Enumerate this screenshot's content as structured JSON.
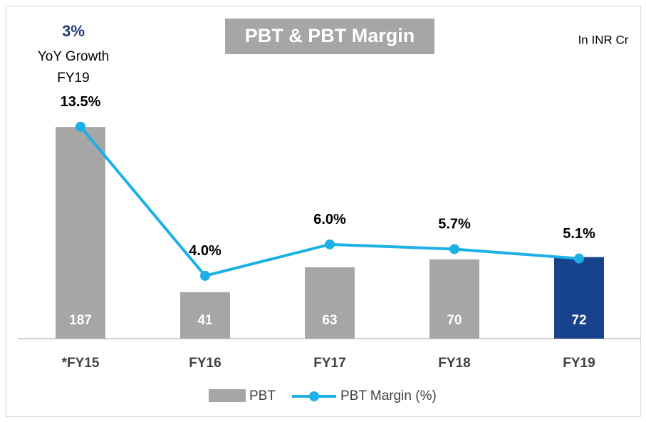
{
  "chart_data": {
    "type": "bar",
    "title": "PBT & PBT Margin",
    "annotations": [
      "3%",
      "YoY Growth",
      "FY19",
      "In INR Cr"
    ],
    "categories": [
      "*FY15",
      "FY16",
      "FY17",
      "FY18",
      "FY19"
    ],
    "series": [
      {
        "name": "PBT",
        "type": "bar",
        "color": "#a6a6a6",
        "colors": [
          "#a6a6a6",
          "#a6a6a6",
          "#a6a6a6",
          "#a6a6a6",
          "#17428c"
        ],
        "values": [
          187,
          41,
          63,
          70,
          72
        ]
      },
      {
        "name": "PBT Margin (%)",
        "type": "line",
        "axis": "y2",
        "color": "#1cb0e6",
        "values": [
          13.5,
          4.0,
          6.0,
          5.7,
          5.1
        ],
        "value_labels": [
          "13.5%",
          "4.0%",
          "6.0%",
          "5.7%",
          "5.1%"
        ]
      }
    ],
    "ylim": [
      0,
      240
    ],
    "y2lim": [
      0,
      17.3
    ]
  }
}
